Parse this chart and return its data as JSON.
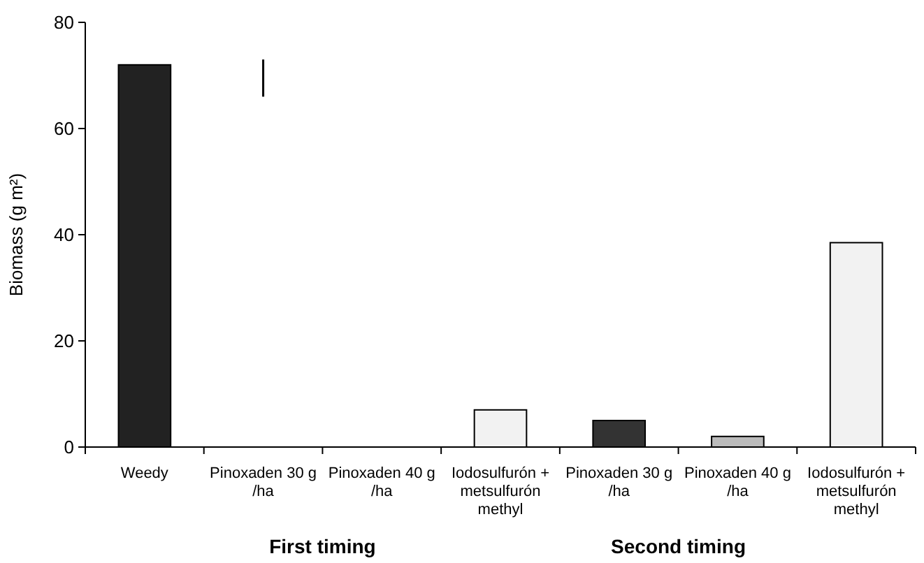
{
  "chart_data": {
    "type": "bar",
    "ylabel": "Biomass (g m²)",
    "categories": [
      "Weedy",
      "Pinoxaden 30 g /ha",
      "Pinoxaden 40 g /ha",
      "Iodosulfurón + metsulfurón methyl",
      "Pinoxaden 30 g /ha",
      "Pinoxaden 40 g /ha",
      "Iodosulfurón + metsulfurón methyl"
    ],
    "values": [
      72,
      0,
      0,
      7,
      5,
      2,
      38.5
    ],
    "colors": [
      "#222222",
      "#ffffff",
      "#ffffff",
      "#f2f2f2",
      "#333333",
      "#bbbbbb",
      "#f2f2f2"
    ],
    "errors": [
      null,
      [
        66,
        73
      ],
      null,
      null,
      null,
      null,
      null
    ],
    "ylim": [
      0,
      80
    ],
    "yticks": [
      0,
      20,
      40,
      60,
      80
    ],
    "annotations": [
      "First timing",
      "Second timing"
    ]
  }
}
